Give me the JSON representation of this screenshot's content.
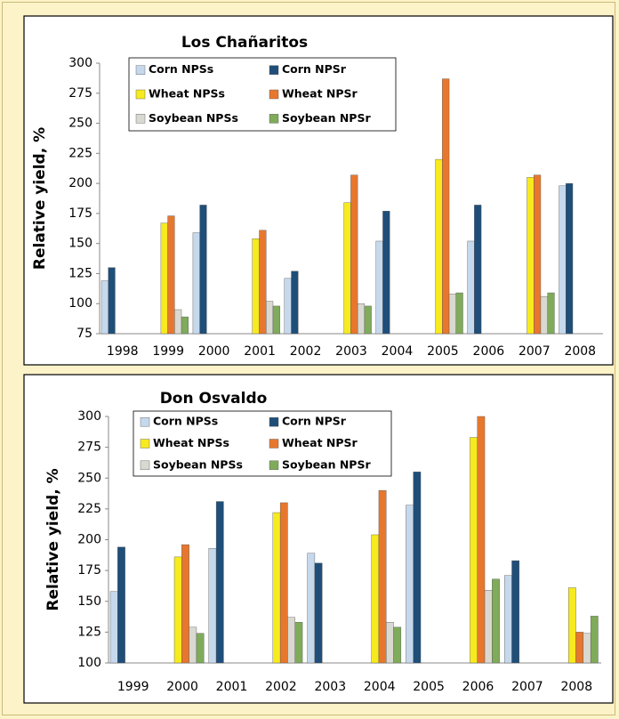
{
  "chart_data": [
    {
      "type": "bar",
      "title": "Los Chañaritos",
      "y_label": "Relative yield, %",
      "categories": [
        "1998",
        "1999",
        "2000",
        "2001",
        "2002",
        "2003",
        "2004",
        "2005",
        "2006",
        "2007",
        "2008"
      ],
      "series": [
        {
          "name": "Corn NPSs",
          "color": "#c6d9ec",
          "values": [
            119,
            null,
            159,
            null,
            121,
            null,
            152,
            null,
            152,
            null,
            198
          ]
        },
        {
          "name": "Corn NPSr",
          "color": "#1f4e79",
          "values": [
            130,
            null,
            182,
            null,
            127,
            null,
            177,
            null,
            182,
            null,
            200
          ]
        },
        {
          "name": "Wheat NPSs",
          "color": "#f7ea1e",
          "values": [
            null,
            167,
            null,
            154,
            null,
            184,
            null,
            220,
            null,
            205,
            null
          ]
        },
        {
          "name": "Wheat NPSr",
          "color": "#e8772e",
          "values": [
            null,
            173,
            null,
            161,
            null,
            207,
            null,
            287,
            null,
            207,
            null
          ]
        },
        {
          "name": "Soybean NPSs",
          "color": "#d9d9d2",
          "values": [
            null,
            95,
            null,
            102,
            null,
            100,
            null,
            108,
            null,
            106,
            null
          ]
        },
        {
          "name": "Soybean NPSr",
          "color": "#7fab5a",
          "values": [
            null,
            89,
            null,
            98,
            null,
            98,
            null,
            109,
            null,
            109,
            null
          ]
        }
      ],
      "ylim": [
        75,
        300
      ],
      "yticks": [
        75,
        100,
        125,
        150,
        175,
        200,
        225,
        250,
        275,
        300
      ],
      "legend": "upper left",
      "grid": false
    },
    {
      "type": "bar",
      "title": "Don Osvaldo",
      "y_label": "Relative yield, %",
      "categories": [
        "1999",
        "2000",
        "2001",
        "2002",
        "2003",
        "2004",
        "2005",
        "2006",
        "2007",
        "2008"
      ],
      "series": [
        {
          "name": "Corn NPSs",
          "color": "#c6d9ec",
          "values": [
            158,
            null,
            193,
            null,
            189,
            null,
            228,
            null,
            171,
            null
          ]
        },
        {
          "name": "Corn NPSr",
          "color": "#1f4e79",
          "values": [
            194,
            null,
            231,
            null,
            181,
            null,
            255,
            null,
            183,
            null
          ]
        },
        {
          "name": "Wheat NPSs",
          "color": "#f7ea1e",
          "values": [
            null,
            186,
            null,
            222,
            null,
            204,
            null,
            283,
            null,
            161
          ]
        },
        {
          "name": "Wheat NPSr",
          "color": "#e8772e",
          "values": [
            null,
            196,
            null,
            230,
            null,
            240,
            null,
            300,
            null,
            125
          ]
        },
        {
          "name": "Soybean NPSs",
          "color": "#d9d9d2",
          "values": [
            null,
            129,
            null,
            137,
            null,
            133,
            null,
            159,
            null,
            124
          ]
        },
        {
          "name": "Soybean NPSr",
          "color": "#7fab5a",
          "values": [
            null,
            124,
            null,
            133,
            null,
            129,
            null,
            168,
            null,
            138
          ]
        }
      ],
      "ylim": [
        100,
        300
      ],
      "yticks": [
        100,
        125,
        150,
        175,
        200,
        225,
        250,
        275,
        300
      ],
      "legend": "upper left",
      "grid": false
    }
  ]
}
